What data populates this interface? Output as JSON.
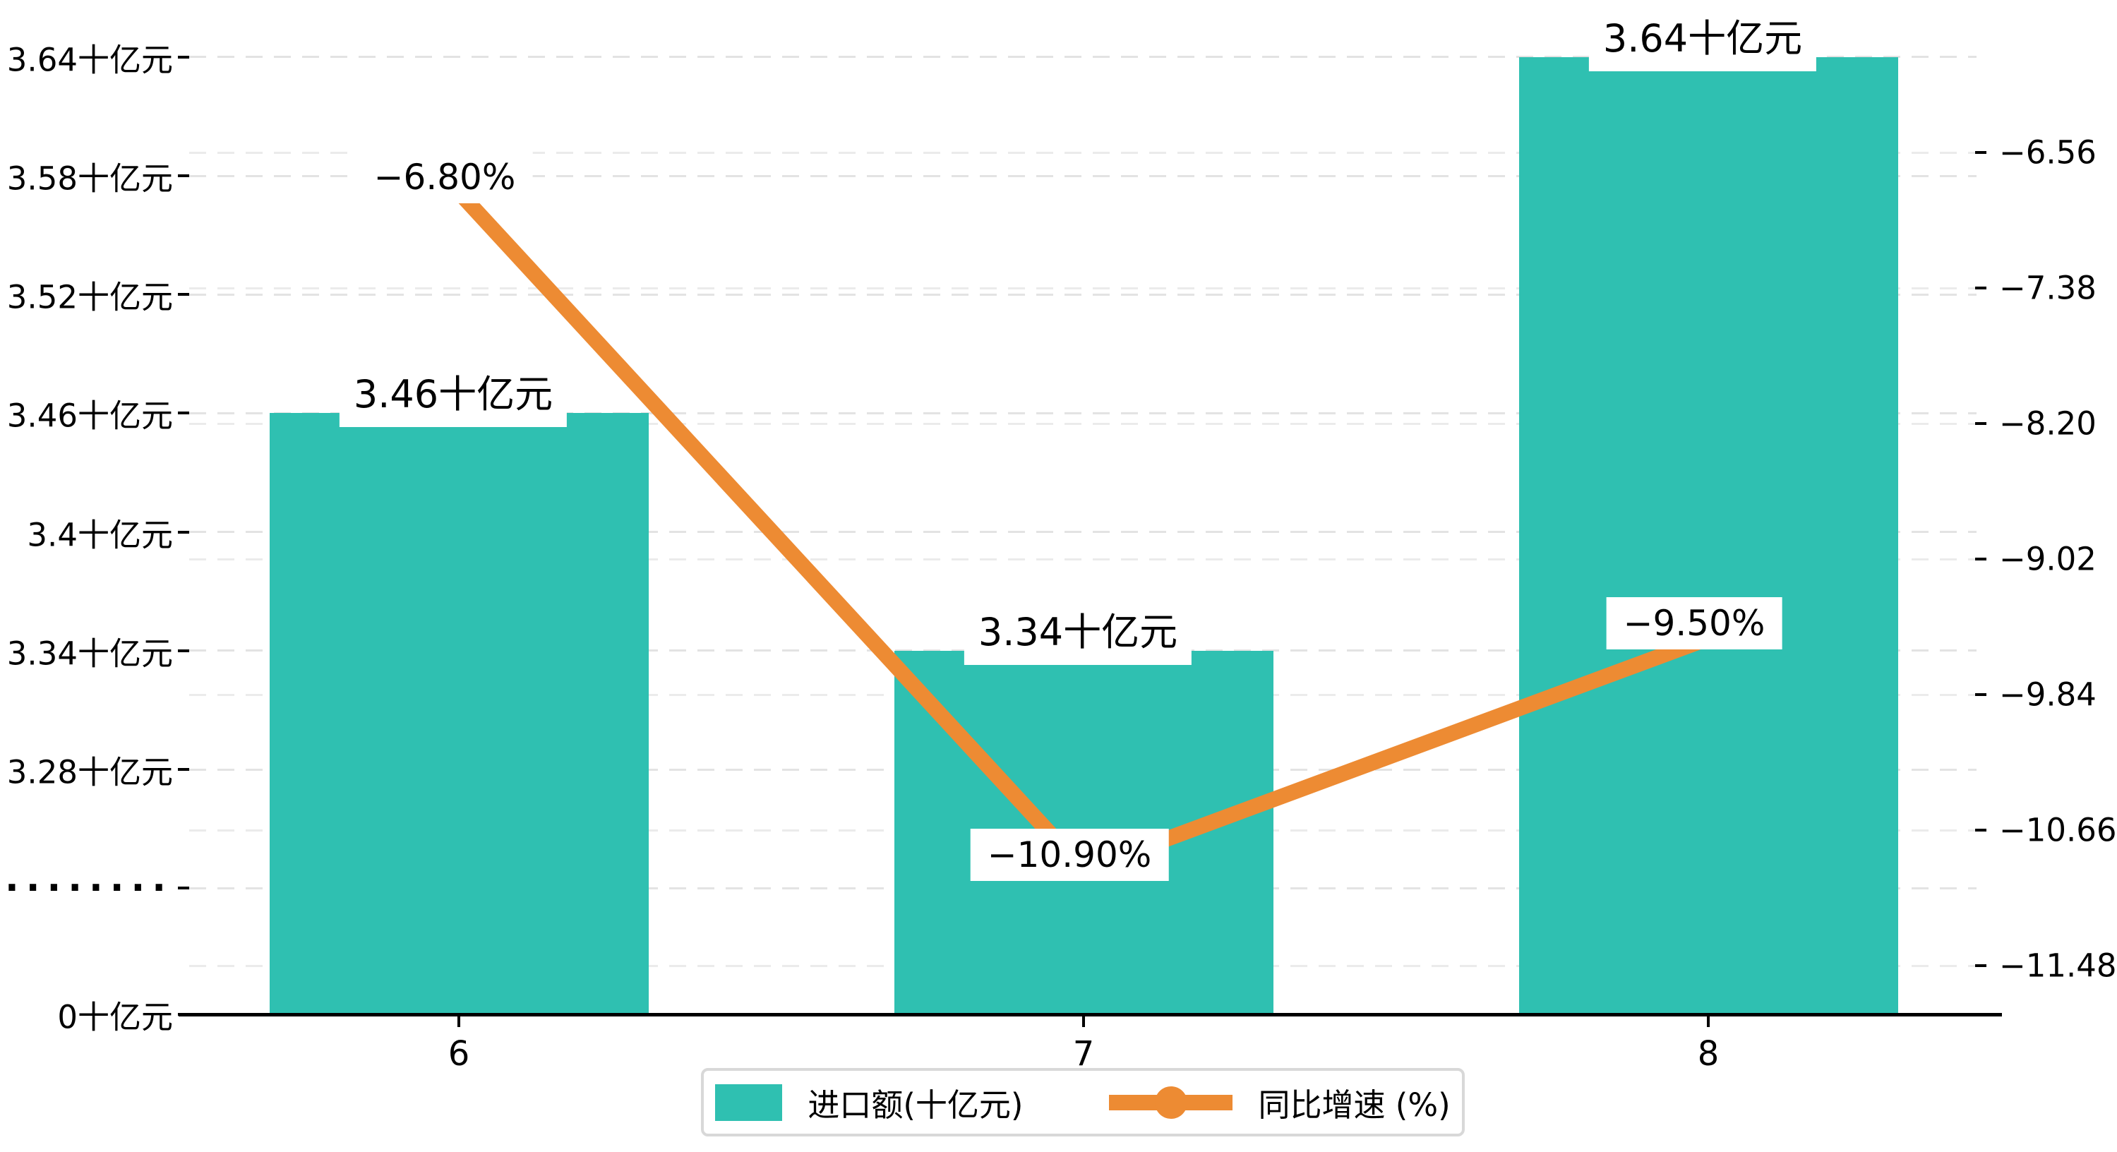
{
  "chart_data": {
    "type": "combo-bar-line",
    "categories": [
      "6",
      "7",
      "8"
    ],
    "series": [
      {
        "name": "进口额(十亿元)",
        "type": "bar",
        "axis": "left",
        "color": "#2FC0B1",
        "values": [
          3.46,
          3.34,
          3.64
        ],
        "data_labels": [
          "3.46十亿元",
          "3.34十亿元",
          "3.64十亿元"
        ]
      },
      {
        "name": "同比增速 (%)",
        "type": "line",
        "axis": "right",
        "color": "#ED8B33",
        "values": [
          -6.8,
          -10.9,
          -9.5
        ],
        "data_labels": [
          "−6.80%",
          "−10.90%",
          "−9.50%"
        ]
      }
    ],
    "left_axis": {
      "unit": "十亿元",
      "tick_labels": [
        "3.64十亿元",
        "3.58十亿元",
        "3.52十亿元",
        "3.46十亿元",
        "3.4十亿元",
        "3.34十亿元",
        "3.28十亿元",
        "·········",
        "0十亿元"
      ],
      "tick_values": [
        3.64,
        3.58,
        3.52,
        3.46,
        3.4,
        3.34,
        3.28,
        null,
        0
      ],
      "axis_break": true
    },
    "right_axis": {
      "tick_labels": [
        "−6.56",
        "−7.38",
        "−8.20",
        "−9.02",
        "−9.84",
        "−10.66",
        "−11.48"
      ],
      "tick_values": [
        -6.56,
        -7.38,
        -8.2,
        -9.02,
        -9.84,
        -10.66,
        -11.48
      ]
    },
    "x_axis": {
      "tick_labels": [
        "6",
        "7",
        "8"
      ]
    },
    "legend": {
      "position": "bottom-center",
      "items": [
        {
          "label": "进口额(十亿元)",
          "marker": "rect",
          "color": "#2FC0B1"
        },
        {
          "label": "同比增速 (%)",
          "marker": "line-dot",
          "color": "#ED8B33"
        }
      ]
    },
    "grid": {
      "shown": true,
      "style": "dashed"
    },
    "background": "#ffffff"
  }
}
